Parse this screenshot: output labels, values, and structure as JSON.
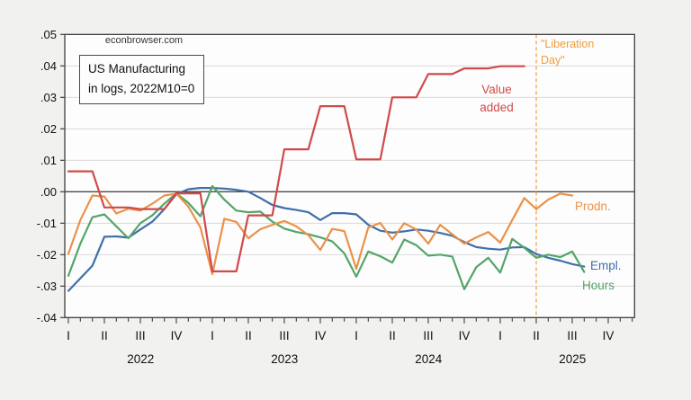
{
  "watermark": "econbrowser.com",
  "title_box": {
    "line1": "US Manufacturing",
    "line2": "in logs, 2022M10=0"
  },
  "annotations": {
    "liberation_line1": "\"Liberation",
    "liberation_line2": "Day\"",
    "value_added_line1": "Value",
    "value_added_line2": "added",
    "prodn": "Prodn.",
    "empl": "Empl.",
    "hours": "Hours"
  },
  "chart_data": {
    "type": "line",
    "title": "US Manufacturing in logs, 2022M10=0",
    "source_watermark": "econbrowser.com",
    "frequency": "monthly",
    "x_start": "2022M01",
    "x_end_axis": "2025M12",
    "normalization": "2022M10=0",
    "ylim": [
      -0.04,
      0.05
    ],
    "ytick_step": 0.01,
    "ytick_labels": [
      ".05",
      ".04",
      ".03",
      ".02",
      ".01",
      ".00",
      "-.01",
      "-.02",
      "-.03",
      "-.04"
    ],
    "quarter_tick_labels": [
      "I",
      "II",
      "III",
      "IV"
    ],
    "year_labels": [
      "2022",
      "2023",
      "2024",
      "2025"
    ],
    "grid": "horizontal",
    "legend_position": "inline-right-labels",
    "vline": {
      "x_month": "2025M04",
      "label": "\"Liberation Day\"",
      "style": "dashed",
      "color": "#f09d3c"
    },
    "months": [
      "2022M01",
      "2022M02",
      "2022M03",
      "2022M04",
      "2022M05",
      "2022M06",
      "2022M07",
      "2022M08",
      "2022M09",
      "2022M10",
      "2022M11",
      "2022M12",
      "2023M01",
      "2023M02",
      "2023M03",
      "2023M04",
      "2023M05",
      "2023M06",
      "2023M07",
      "2023M08",
      "2023M09",
      "2023M10",
      "2023M11",
      "2023M12",
      "2024M01",
      "2024M02",
      "2024M03",
      "2024M04",
      "2024M05",
      "2024M06",
      "2024M07",
      "2024M08",
      "2024M09",
      "2024M10",
      "2024M11",
      "2024M12",
      "2025M01",
      "2025M02",
      "2025M03",
      "2025M04",
      "2025M05",
      "2025M06",
      "2025M07",
      "2025M08"
    ],
    "series": [
      {
        "name": "Value added",
        "color": "#d04a4a",
        "note": "quarterly series plotted as steps, ends 2025M03",
        "values": [
          0.0065,
          0.0065,
          0.0065,
          -0.005,
          -0.005,
          -0.005,
          -0.0055,
          -0.0055,
          -0.0055,
          -0.0005,
          -0.0005,
          -0.0005,
          -0.0253,
          -0.0253,
          -0.0253,
          -0.0075,
          -0.0075,
          -0.0075,
          0.0135,
          0.0135,
          0.0135,
          0.0272,
          0.0272,
          0.0272,
          0.0103,
          0.0103,
          0.0103,
          0.03,
          0.03,
          0.03,
          0.0374,
          0.0374,
          0.0374,
          0.0392,
          0.0392,
          0.0392,
          0.0399,
          0.0399,
          0.0399,
          null,
          null,
          null,
          null,
          null
        ]
      },
      {
        "name": "Prodn.",
        "color": "#e9924a",
        "note": "ends 2025M07",
        "values": [
          -0.0197,
          -0.009,
          -0.0012,
          -0.0015,
          -0.0069,
          -0.0054,
          -0.006,
          -0.0038,
          -0.0012,
          -0.0006,
          -0.0047,
          -0.0113,
          -0.0262,
          -0.0086,
          -0.0096,
          -0.0148,
          -0.0119,
          -0.0105,
          -0.0093,
          -0.011,
          -0.0138,
          -0.0185,
          -0.0118,
          -0.0125,
          -0.0245,
          -0.0114,
          -0.0099,
          -0.0152,
          -0.01,
          -0.012,
          -0.0165,
          -0.0105,
          -0.0135,
          -0.0165,
          -0.0145,
          -0.0128,
          -0.0162,
          -0.009,
          -0.002,
          -0.0055,
          -0.0025,
          -0.0006,
          -0.0012,
          null
        ]
      },
      {
        "name": "Empl.",
        "color": "#3f6fa8",
        "note": "ends 2025M08",
        "values": [
          -0.0315,
          -0.0275,
          -0.0235,
          -0.0143,
          -0.0142,
          -0.0146,
          -0.012,
          -0.0095,
          -0.0055,
          -0.0008,
          0.0008,
          0.0012,
          0.0012,
          0.001,
          0.0006,
          0,
          -0.002,
          -0.0042,
          -0.0052,
          -0.0058,
          -0.0065,
          -0.009,
          -0.0068,
          -0.0068,
          -0.0072,
          -0.0105,
          -0.0124,
          -0.013,
          -0.0126,
          -0.012,
          -0.0124,
          -0.0131,
          -0.014,
          -0.016,
          -0.0176,
          -0.0181,
          -0.0184,
          -0.0177,
          -0.0176,
          -0.0198,
          -0.021,
          -0.0219,
          -0.023,
          -0.0238
        ]
      },
      {
        "name": "Hours",
        "color": "#54a468",
        "note": "ends 2025M08",
        "values": [
          -0.0267,
          -0.0165,
          -0.0081,
          -0.0072,
          -0.011,
          -0.0148,
          -0.01,
          -0.0075,
          -0.0038,
          -0.0005,
          -0.0035,
          -0.0078,
          0.0018,
          -0.0025,
          -0.006,
          -0.0065,
          -0.0063,
          -0.0095,
          -0.0117,
          -0.0128,
          -0.0135,
          -0.0145,
          -0.0158,
          -0.0196,
          -0.027,
          -0.019,
          -0.0205,
          -0.0225,
          -0.0152,
          -0.017,
          -0.0203,
          -0.02,
          -0.0206,
          -0.031,
          -0.024,
          -0.021,
          -0.0257,
          -0.015,
          -0.0178,
          -0.021,
          -0.02,
          -0.0208,
          -0.019,
          -0.0255
        ]
      }
    ],
    "style": {
      "plot_bg": "#fdfdfd",
      "outer_bg": "#f1f1ef",
      "grid_color": "#d9d9d9",
      "zero_line_color": "#4a4a4a",
      "frame_color": "#3f3f3f",
      "axis_text_color": "#111111"
    }
  }
}
